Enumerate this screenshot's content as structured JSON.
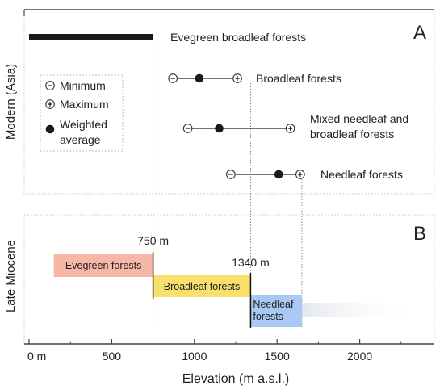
{
  "chart_data": {
    "type": "interval",
    "xlabel": "Elevation (m a.s.l.)",
    "x_ticks": [
      0,
      500,
      1000,
      1500,
      2000
    ],
    "x_tick_labels": [
      "0 m",
      "500",
      "1000",
      "1500",
      "2000"
    ],
    "xlim": [
      -20,
      2420
    ],
    "panel_a": {
      "letter": "A",
      "side_label": "Modern (Asia)",
      "legend": {
        "minimum": "Minimum",
        "maximum": "Maximum",
        "weighted": [
          "Weighted",
          "average"
        ]
      },
      "series": [
        {
          "label": [
            "Evegreen broadleaf forests"
          ],
          "bar_min": 0,
          "bar_max": 750
        },
        {
          "label": [
            "Broadleaf forests"
          ],
          "min": 870,
          "avg": 1030,
          "max": 1260
        },
        {
          "label": [
            "Mixed needleaf and",
            "broadleaf forests"
          ],
          "min": 960,
          "avg": 1150,
          "max": 1580
        },
        {
          "label": [
            "Needleaf forests"
          ],
          "min": 1220,
          "avg": 1510,
          "max": 1640
        }
      ]
    },
    "panel_b": {
      "letter": "B",
      "side_label": "Late Miocene",
      "zones": [
        {
          "label": [
            "Evegreen forests"
          ],
          "start": 150,
          "end": 750,
          "color": "#f7b7a7"
        },
        {
          "label": [
            "Broadleaf forests"
          ],
          "start": 750,
          "end": 1340,
          "color": "#f9df6b"
        },
        {
          "label": [
            "Needleaf",
            "forests"
          ],
          "start": 1340,
          "end": 1650,
          "color": "#a9c8f3"
        }
      ],
      "fade": {
        "start": 1650,
        "end": 2350
      },
      "boundaries": [
        {
          "value": 750,
          "label": "750 m"
        },
        {
          "value": 1340,
          "label": "1340 m"
        }
      ]
    },
    "guides": [
      750,
      1340,
      1650
    ],
    "colors": {
      "frame": "#444444",
      "marker": "#1a1a1a",
      "grid": "#777777"
    }
  }
}
